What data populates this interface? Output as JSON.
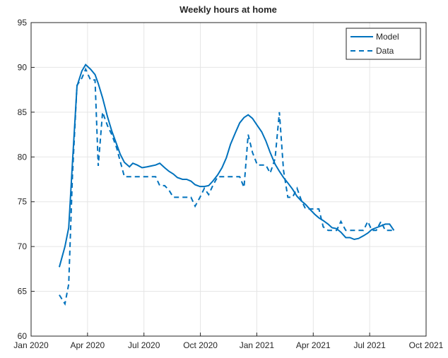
{
  "chart_data": {
    "type": "line",
    "title": "Weekly hours at home",
    "x": [
      1.5,
      1.8,
      2.0,
      2.2,
      2.44,
      2.7,
      2.9,
      3.16,
      3.4,
      3.57,
      3.8,
      4.06,
      4.29,
      4.55,
      4.74,
      4.96,
      5.23,
      5.41,
      5.64,
      5.9,
      6.17,
      6.39,
      6.62,
      6.84,
      7.1,
      7.33,
      7.56,
      7.78,
      8.05,
      8.27,
      8.5,
      8.72,
      8.98,
      9.21,
      9.44,
      9.66,
      9.92,
      10.15,
      10.38,
      10.6,
      10.86,
      11.09,
      11.32,
      11.54,
      11.77,
      12.03,
      12.26,
      12.48,
      12.71,
      12.97,
      13.2,
      13.42,
      13.65,
      13.9,
      14.14,
      14.36,
      14.59,
      14.85,
      15.08,
      15.3,
      15.53,
      15.79,
      16.0,
      16.24,
      16.47,
      16.73,
      16.95,
      17.18,
      17.41,
      17.67,
      17.9,
      18.12,
      18.35,
      18.6,
      18.83,
      19.06,
      19.29
    ],
    "series": [
      {
        "name": "Model",
        "color": "#0072bd",
        "dash": false,
        "values": [
          67.7,
          70.0,
          72.1,
          79.4,
          87.9,
          89.6,
          90.3,
          89.8,
          89.2,
          88.2,
          86.6,
          84.5,
          82.9,
          81.4,
          80.3,
          79.4,
          78.9,
          79.3,
          79.1,
          78.8,
          78.9,
          79.0,
          79.1,
          79.3,
          78.8,
          78.4,
          78.1,
          77.7,
          77.5,
          77.5,
          77.3,
          76.9,
          76.7,
          76.7,
          76.8,
          77.3,
          78.0,
          78.8,
          79.9,
          81.4,
          82.7,
          83.8,
          84.4,
          84.7,
          84.3,
          83.5,
          82.8,
          81.8,
          80.5,
          79.2,
          78.4,
          77.7,
          77.1,
          76.4,
          75.6,
          75.1,
          74.7,
          74.1,
          73.6,
          73.2,
          72.9,
          72.5,
          72.1,
          72.0,
          71.6,
          71.0,
          71.0,
          70.8,
          70.9,
          71.2,
          71.5,
          71.9,
          72.1,
          72.3,
          72.5,
          72.5,
          71.8
        ]
      },
      {
        "name": "Data",
        "color": "#0072bd",
        "dash": true,
        "values": [
          64.6,
          63.6,
          65.8,
          78,
          88,
          88.8,
          89.8,
          88.6,
          88.6,
          79,
          85,
          83.5,
          82.5,
          81,
          79.5,
          77.8,
          77.8,
          77.8,
          77.8,
          77.8,
          77.8,
          77.8,
          77.8,
          76.8,
          76.8,
          76.3,
          75.5,
          75.5,
          75.5,
          75.5,
          75.5,
          74.5,
          75.5,
          76.5,
          75.8,
          76.8,
          77.8,
          77.8,
          77.8,
          77.8,
          77.8,
          77.8,
          76.6,
          82.5,
          80.5,
          79.1,
          79.1,
          79.1,
          78.2,
          79.8,
          85,
          78.5,
          75.5,
          75.5,
          76.5,
          75.2,
          74.2,
          74.2,
          74.2,
          74.2,
          72.2,
          71.8,
          71.8,
          71.8,
          72.8,
          71.8,
          71.8,
          71.8,
          71.8,
          71.8,
          72.8,
          71.8,
          71.8,
          72.8,
          71.8,
          71.8,
          71.8
        ]
      }
    ],
    "xlim": [
      0,
      21
    ],
    "xticks": [
      {
        "value": 0,
        "label": "Jan 2020"
      },
      {
        "value": 3,
        "label": "Apr 2020"
      },
      {
        "value": 6,
        "label": "Jul 2020"
      },
      {
        "value": 9,
        "label": "Oct 2020"
      },
      {
        "value": 12,
        "label": "Jan 2021"
      },
      {
        "value": 15,
        "label": "Apr 2021"
      },
      {
        "value": 18,
        "label": "Jul 2021"
      },
      {
        "value": 21,
        "label": "Oct 2021"
      }
    ],
    "ylim": [
      60,
      95
    ],
    "yticks": [
      60,
      65,
      70,
      75,
      80,
      85,
      90,
      95
    ],
    "grid": true,
    "legend": "top-right"
  }
}
